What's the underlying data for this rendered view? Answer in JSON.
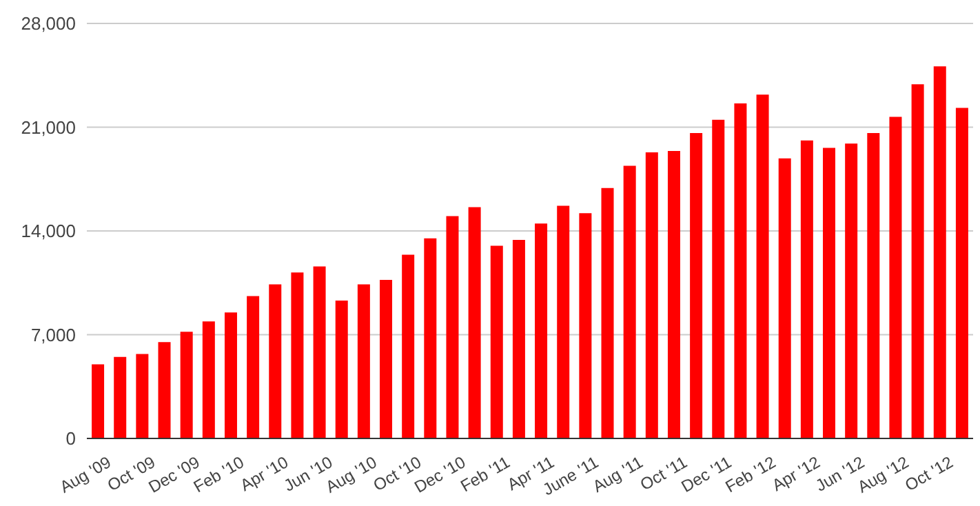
{
  "chart_data": {
    "type": "bar",
    "categories": [
      "Aug '09",
      null,
      "Oct '09",
      null,
      "Dec '09",
      null,
      "Feb '10",
      null,
      "Apr '10",
      null,
      "Jun '10",
      null,
      "Aug '10",
      null,
      "Oct '10",
      null,
      "Dec '10",
      null,
      "Feb '11",
      null,
      "Apr '11",
      null,
      "June '11",
      null,
      "Aug '11",
      null,
      "Oct '11",
      null,
      "Dec '11",
      null,
      "Feb '12",
      null,
      "Apr '12",
      null,
      "Jun '12",
      null,
      "Aug '12",
      null,
      "Oct '12",
      null
    ],
    "series": [
      {
        "color": "#ff0000",
        "values": [
          5000,
          5500,
          5700,
          6500,
          7200,
          7900,
          8500,
          9600,
          10400,
          11200,
          11600,
          9300,
          10400,
          10700,
          12400,
          13500,
          15000,
          15600,
          13000,
          13400,
          14500,
          15700,
          15200,
          16900,
          18400,
          19300,
          19400,
          20600,
          21500,
          22600,
          23200,
          18900,
          20100,
          19600,
          19900,
          20600,
          21700,
          23900,
          25100,
          22300
        ]
      }
    ],
    "ylim": [
      0,
      28000
    ],
    "yticks": [
      {
        "value": 0,
        "label": "0"
      },
      {
        "value": 7000,
        "label": "7,000"
      },
      {
        "value": 14000,
        "label": "14,000"
      },
      {
        "value": 21000,
        "label": "21,000"
      },
      {
        "value": 28000,
        "label": "28,000"
      }
    ],
    "grid": "y",
    "legend": false
  }
}
